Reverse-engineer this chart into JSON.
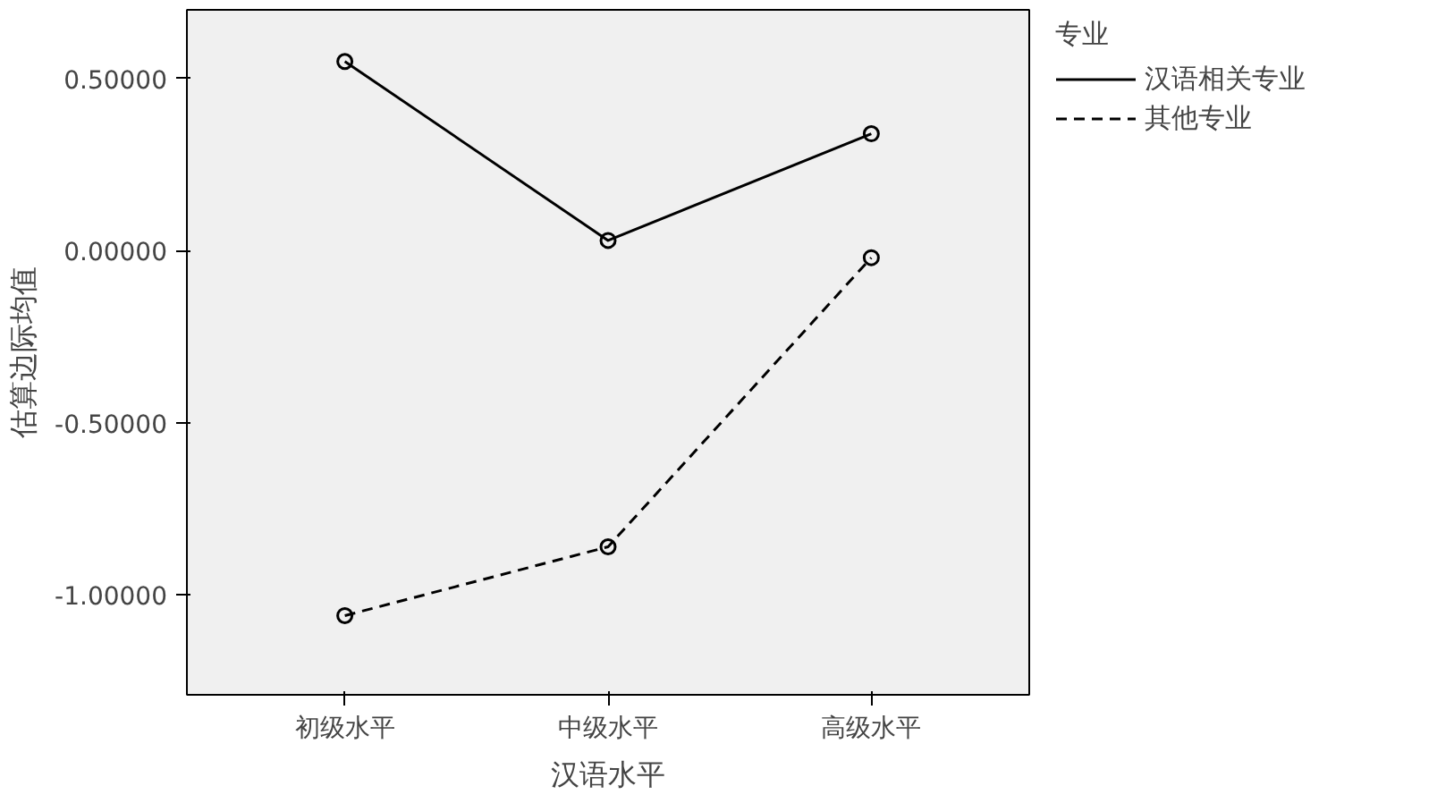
{
  "chart_data": {
    "type": "line",
    "xlabel": "汉语水平",
    "ylabel": "估算边际均值",
    "legend_title": "专业",
    "legend": "right",
    "marker": "circle",
    "grid": false,
    "categories": [
      "初级水平",
      "中级水平",
      "高级水平"
    ],
    "ylim": [
      -1.29,
      0.7
    ],
    "yticks": [
      {
        "value": 0.5,
        "label": "0.50000"
      },
      {
        "value": 0,
        "label": "0.00000"
      },
      {
        "value": -0.5,
        "label": "-0.50000"
      },
      {
        "value": -1,
        "label": "-1.00000"
      }
    ],
    "series": [
      {
        "name": "汉语相关专业",
        "color": "#000000",
        "line_style": "solid",
        "values": [
          0.55,
          0.03,
          0.34
        ]
      },
      {
        "name": "其他专业",
        "color": "#000000",
        "line_style": "dashed",
        "values": [
          -1.06,
          -0.86,
          -0.02
        ]
      }
    ]
  }
}
